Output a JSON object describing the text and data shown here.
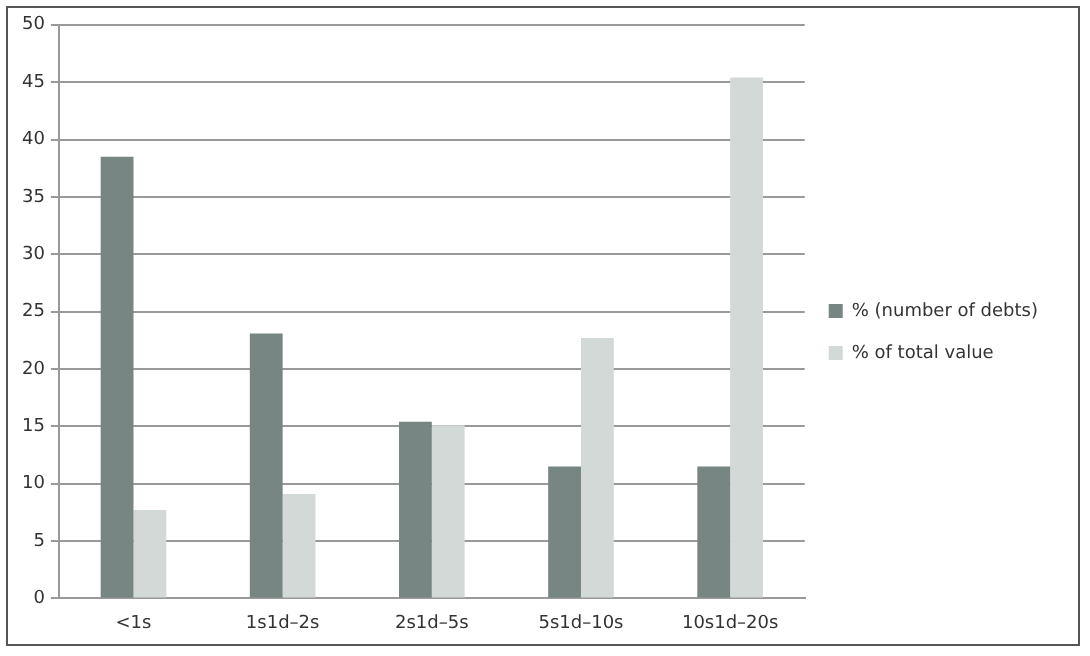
{
  "chart_data": {
    "type": "bar",
    "categories": [
      "<1s",
      "1s1d–2s",
      "2s1d–5s",
      "5s1d–10s",
      "10s1d–20s"
    ],
    "series": [
      {
        "name": "% (number of debts)",
        "color": "#778583",
        "values": [
          38.5,
          23.1,
          15.4,
          11.5,
          11.5
        ]
      },
      {
        "name": "% of total value",
        "color": "#d3d9d7",
        "values": [
          7.7,
          9.1,
          15.1,
          22.7,
          45.4
        ]
      }
    ],
    "ylim": [
      0,
      50
    ],
    "yticks": [
      0,
      5,
      10,
      15,
      20,
      25,
      30,
      35,
      40,
      45,
      50
    ],
    "grid": "y",
    "legend": "right"
  }
}
